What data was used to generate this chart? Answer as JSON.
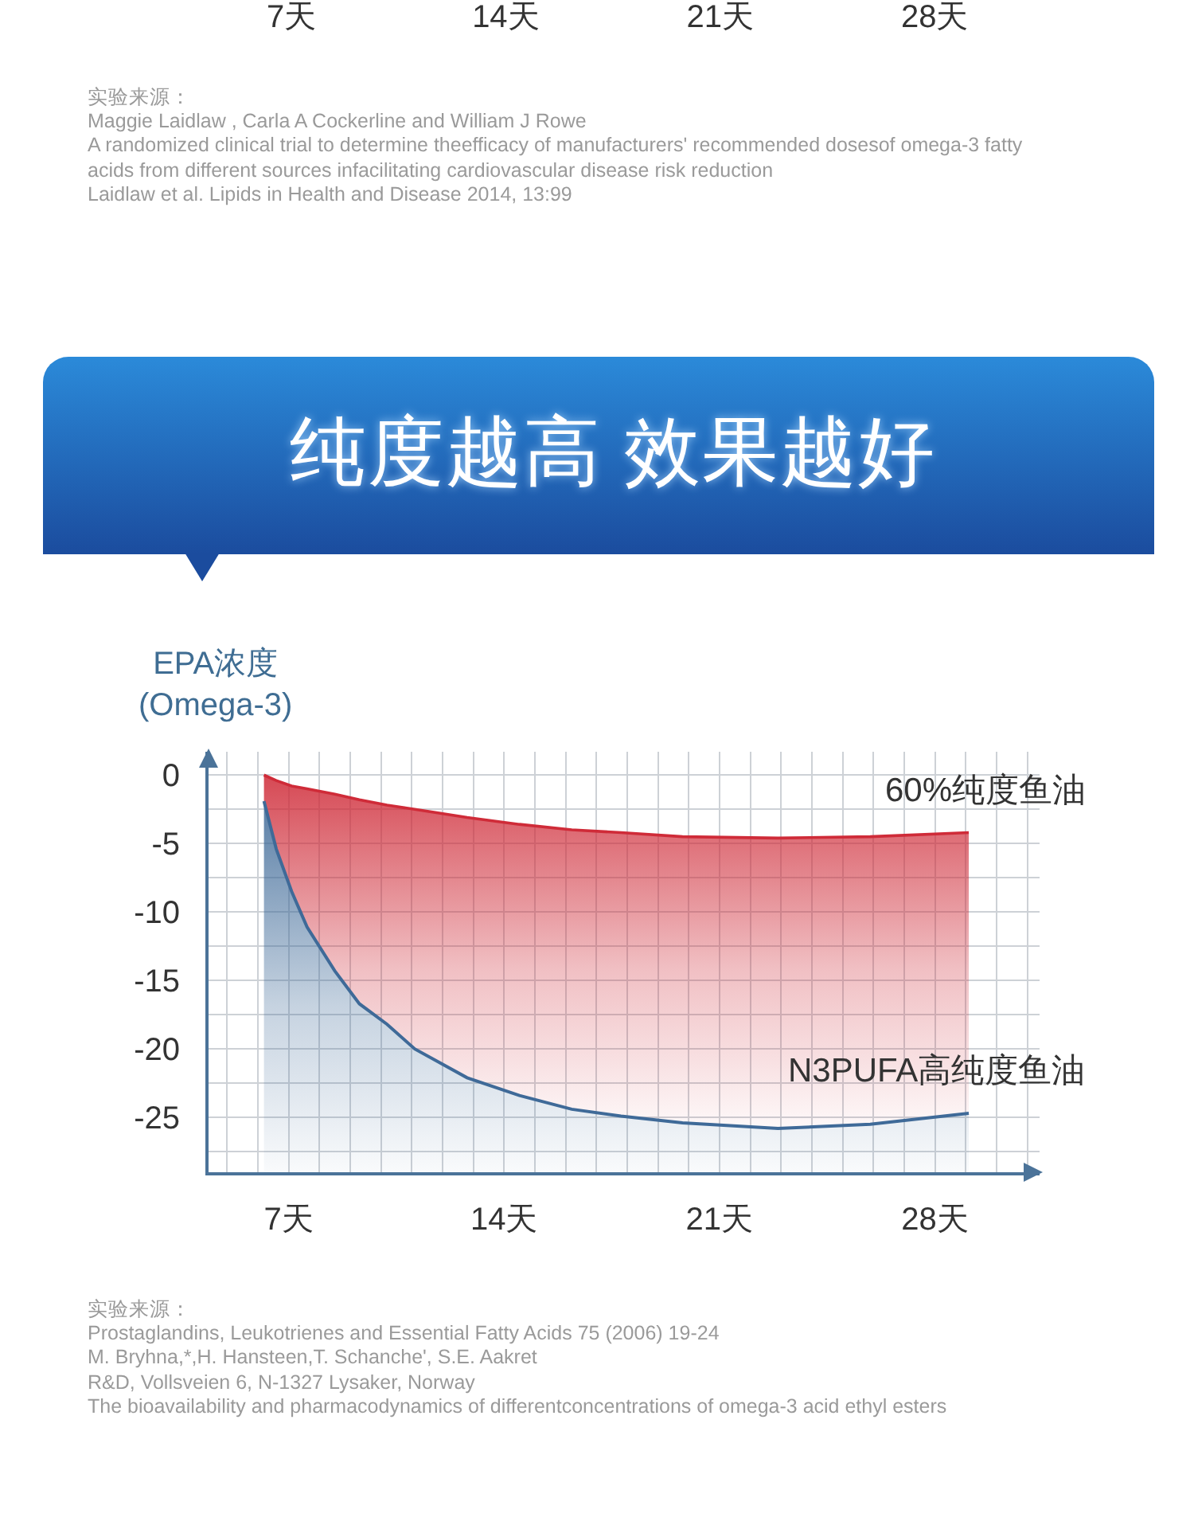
{
  "chart_data": {
    "type": "line",
    "title": "纯度越高 效果越好",
    "ylabel": "EPA浓度\n(Omega-3)",
    "xlim": [
      4.4,
      31.4
    ],
    "xticks": [
      {
        "value": 7,
        "label": "7天"
      },
      {
        "value": 14,
        "label": "14天"
      },
      {
        "value": 21,
        "label": "21天"
      },
      {
        "value": 28,
        "label": "28天"
      }
    ],
    "ylim": [
      -29,
      1.7
    ],
    "yticks": [
      0,
      -5,
      -10,
      -15,
      -20,
      -25
    ],
    "grid": true,
    "x": [
      6.2,
      6.6,
      7.1,
      7.6,
      8.5,
      9.3,
      10.2,
      11.1,
      12.8,
      14.5,
      16.2,
      17.8,
      19.8,
      22.9,
      25.9,
      29.1
    ],
    "series": [
      {
        "name": "60%纯度鱼油",
        "color": "#cf2b38",
        "values": [
          0,
          -0.4,
          -0.8,
          -1.0,
          -1.4,
          -1.8,
          -2.2,
          -2.5,
          -3.1,
          -3.6,
          -4.0,
          -4.2,
          -4.5,
          -4.6,
          -4.5,
          -4.2
        ],
        "upper": [
          0,
          -0.4,
          -0.8,
          -1.0,
          -1.4,
          -1.8,
          -2.2,
          -2.5,
          -3.1,
          -3.6,
          -4.0,
          -4.2,
          -4.5,
          -4.6,
          -4.5,
          -4.2
        ],
        "lower": [
          -1.9,
          -5.4,
          -8.5,
          -11.1,
          -14.3,
          -16.7,
          -18.2,
          -20.0,
          -22.1,
          -23.4,
          -24.4,
          -24.9,
          -25.4,
          -25.8,
          -25.5,
          -24.7
        ]
      },
      {
        "name": "N3PUFA高纯度鱼油",
        "color": "#3f6a98",
        "values": [
          -1.9,
          -5.4,
          -8.5,
          -11.1,
          -14.3,
          -16.7,
          -18.2,
          -20.0,
          -22.1,
          -23.4,
          -24.4,
          -24.9,
          -25.4,
          -25.8,
          -25.5,
          -24.7
        ],
        "upper": [
          -1.9,
          -5.4,
          -8.5,
          -11.1,
          -14.3,
          -16.7,
          -18.2,
          -20.0,
          -22.1,
          -23.4,
          -24.4,
          -24.9,
          -25.4,
          -25.8,
          -25.5,
          -24.7
        ],
        "lower": [
          -29,
          -29,
          -29,
          -29,
          -29,
          -29,
          -29,
          -29,
          -29,
          -29,
          -29,
          -29,
          -29,
          -29,
          -29,
          -29
        ]
      }
    ],
    "annotations": [
      "7天",
      "14天",
      "21天",
      "28天",
      "实验来源：",
      "Maggie Laidlaw , Carla A Cockerline and William J Rowe",
      "A randomized clinical trial to determine theefficacy of manufacturers' recommended dosesof omega-3 fatty acids from different sources infacilitating cardiovascular disease risk reduction",
      "Laidlaw et al. Lipids in Health and Disease 2014, 13:99",
      "实验来源：",
      "Prostaglandins, Leukotrienes and Essential Fatty Acids 75 (2006) 19-24",
      "M. Bryhna,*,H. Hansteen,T. Schanche', S.E. Aakret",
      "R&D, Vollsveien 6, N-1327 Lysaker, Norway",
      "The bioavailability and pharmacodynamics of differentconcentrations of omega-3 acid ethyl esters"
    ]
  }
}
